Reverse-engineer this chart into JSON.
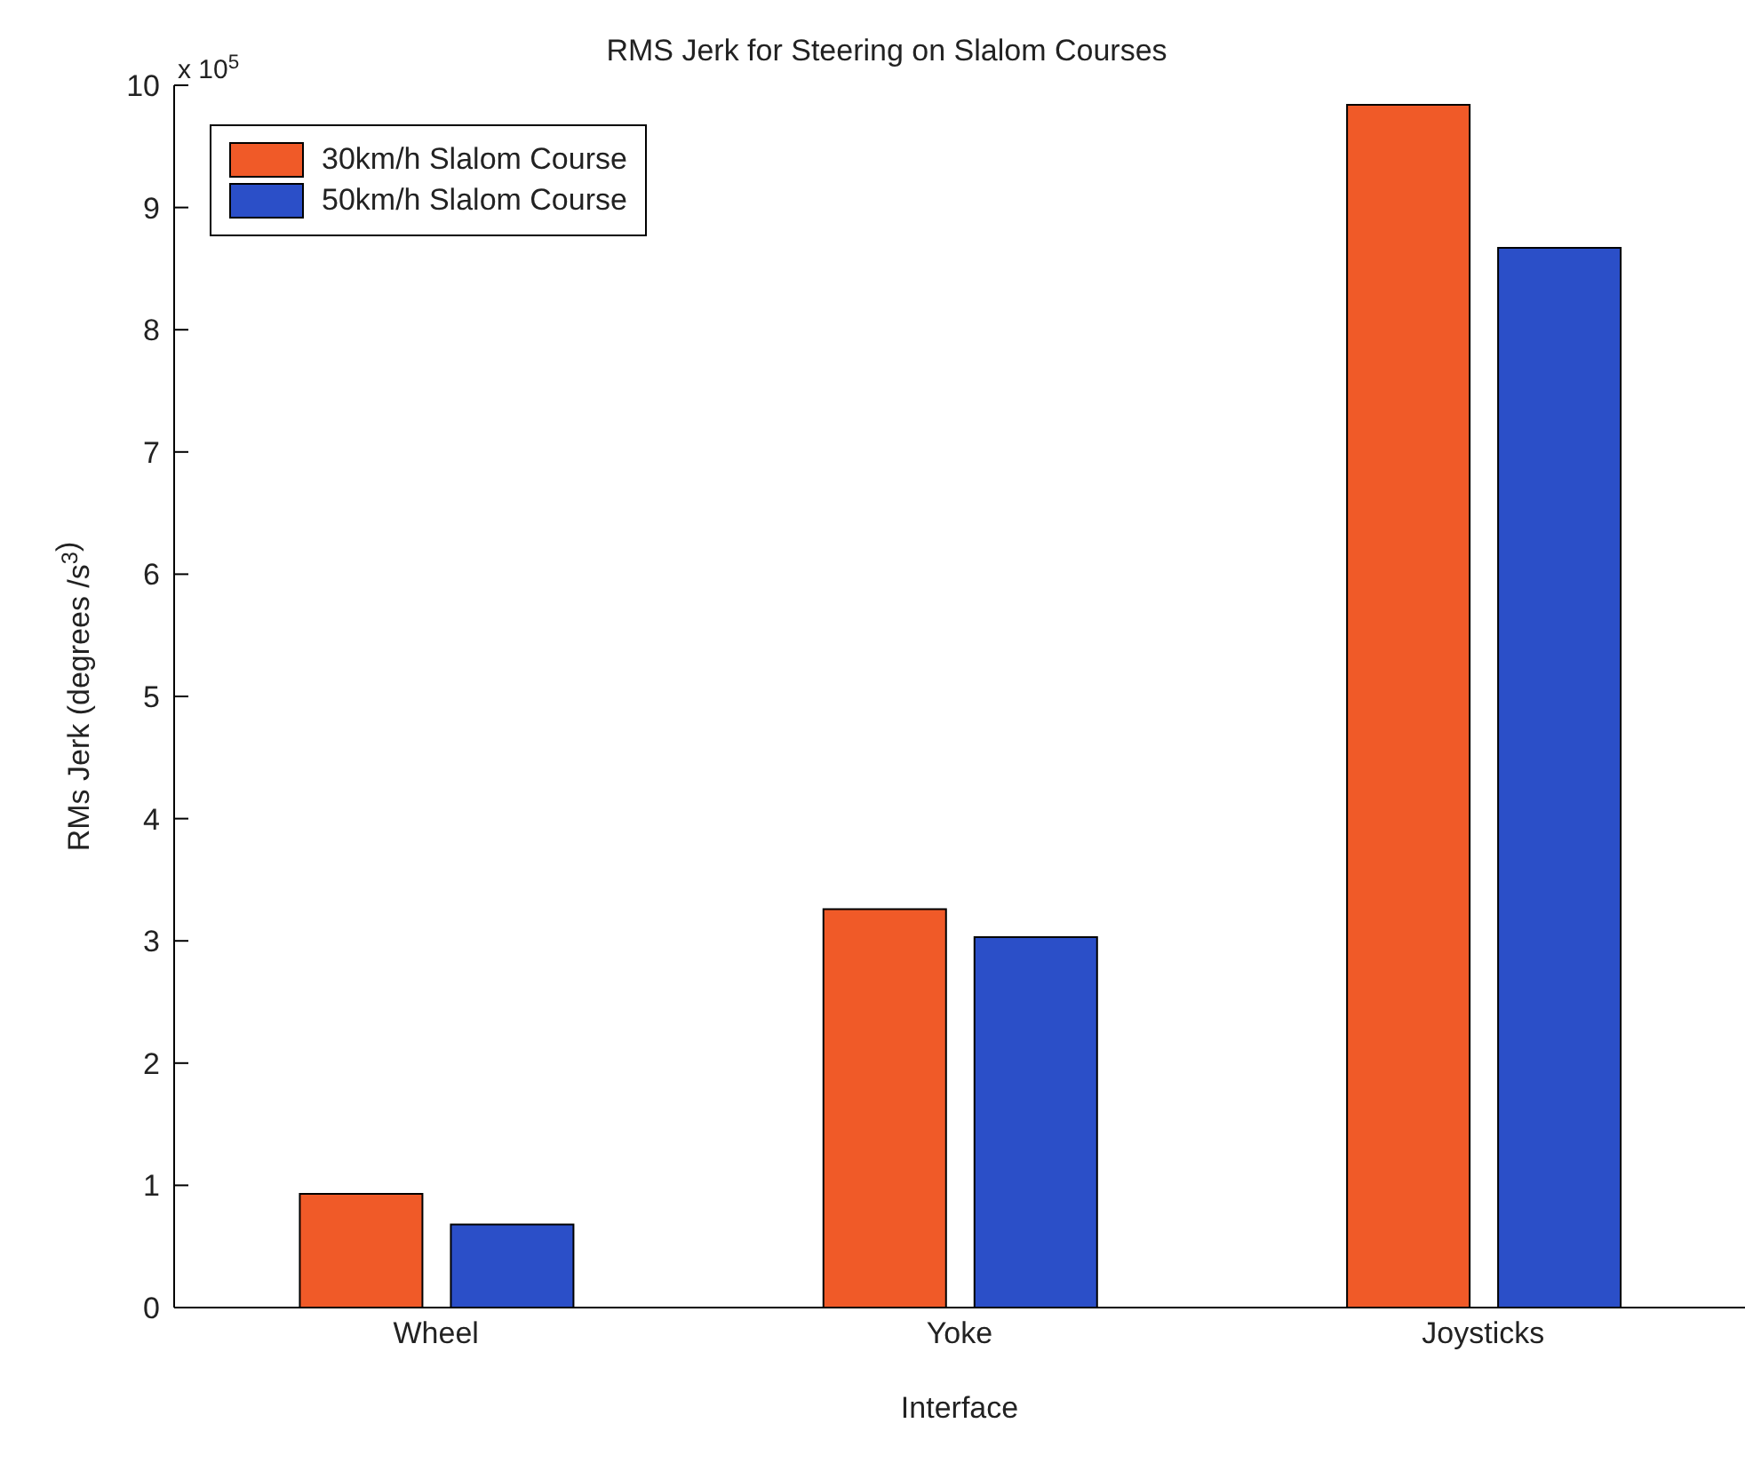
{
  "chart_data": {
    "type": "bar",
    "title": "RMS Jerk for Steering on Slalom Courses",
    "xlabel": "Interface",
    "ylabel": "RMs Jerk (degrees /s$^{3}$)",
    "annotations": [
      "x 10$^{5}$"
    ],
    "categories": [
      "Wheel",
      "Yoke",
      "Joysticks"
    ],
    "series": [
      {
        "name": "30km/h Slalom Course",
        "color": "#f05a28",
        "values": [
          0.93,
          3.26,
          9.84
        ]
      },
      {
        "name": "50km/h Slalom Course",
        "color": "#2b4fc8",
        "values": [
          0.68,
          3.03,
          8.67
        ]
      }
    ],
    "ylim": [
      0,
      10
    ],
    "yticks": [
      0,
      1,
      2,
      3,
      4,
      5,
      6,
      7,
      8,
      9,
      10
    ],
    "grid": false,
    "legend": "top left"
  }
}
